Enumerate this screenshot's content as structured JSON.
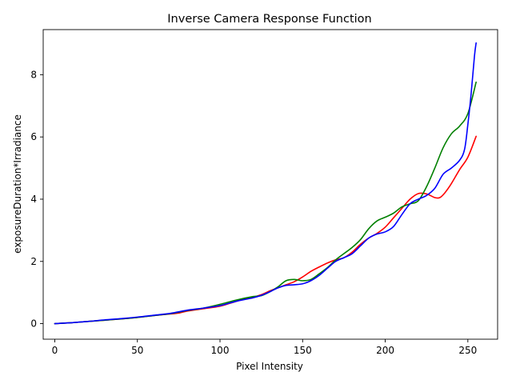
{
  "chart_data": {
    "type": "line",
    "title": "Inverse Camera Response Function",
    "xlabel": "Pixel Intensity",
    "ylabel": "exposureDuration*Irradiance",
    "xlim": [
      -7,
      268
    ],
    "ylim": [
      -0.5,
      9.45
    ],
    "xticks": [
      0,
      50,
      100,
      150,
      200,
      250
    ],
    "yticks": [
      0,
      2,
      4,
      6,
      8
    ],
    "grid": false,
    "legend": "none",
    "series": [
      {
        "color": "#ff0000",
        "x": [
          0,
          10,
          20,
          30,
          40,
          50,
          60,
          70,
          75,
          80,
          90,
          100,
          110,
          120,
          125,
          130,
          135,
          140,
          145,
          150,
          155,
          160,
          165,
          170,
          175,
          180,
          185,
          190,
          195,
          200,
          205,
          210,
          215,
          220,
          225,
          230,
          233,
          236,
          240,
          245,
          250,
          255
        ],
        "y": [
          0.0,
          0.03,
          0.07,
          0.11,
          0.15,
          0.2,
          0.26,
          0.31,
          0.34,
          0.4,
          0.48,
          0.56,
          0.72,
          0.85,
          0.93,
          1.05,
          1.15,
          1.25,
          1.35,
          1.5,
          1.68,
          1.82,
          1.95,
          2.05,
          2.12,
          2.3,
          2.55,
          2.75,
          2.9,
          3.1,
          3.4,
          3.7,
          4.0,
          4.18,
          4.17,
          4.05,
          4.05,
          4.2,
          4.5,
          4.95,
          5.35,
          6.02
        ]
      },
      {
        "color": "#008000",
        "x": [
          0,
          10,
          20,
          30,
          40,
          50,
          60,
          70,
          80,
          90,
          100,
          110,
          120,
          125,
          130,
          135,
          140,
          145,
          150,
          155,
          160,
          165,
          170,
          175,
          180,
          185,
          190,
          195,
          200,
          205,
          210,
          215,
          220,
          225,
          230,
          235,
          240,
          245,
          250,
          255
        ],
        "y": [
          0.0,
          0.03,
          0.07,
          0.11,
          0.15,
          0.2,
          0.26,
          0.32,
          0.42,
          0.5,
          0.62,
          0.76,
          0.87,
          0.9,
          1.02,
          1.18,
          1.38,
          1.42,
          1.38,
          1.42,
          1.6,
          1.8,
          2.05,
          2.25,
          2.45,
          2.7,
          3.05,
          3.3,
          3.42,
          3.55,
          3.75,
          3.85,
          3.95,
          4.4,
          5.0,
          5.65,
          6.1,
          6.35,
          6.75,
          7.76
        ]
      },
      {
        "color": "#0000ff",
        "x": [
          0,
          10,
          20,
          30,
          40,
          50,
          60,
          70,
          80,
          90,
          100,
          110,
          120,
          125,
          130,
          135,
          140,
          145,
          150,
          155,
          160,
          165,
          170,
          175,
          180,
          185,
          190,
          195,
          200,
          205,
          210,
          215,
          220,
          225,
          230,
          235,
          240,
          245,
          248,
          250,
          252,
          254,
          255
        ],
        "y": [
          0.0,
          0.03,
          0.07,
          0.12,
          0.16,
          0.21,
          0.27,
          0.33,
          0.43,
          0.5,
          0.58,
          0.72,
          0.83,
          0.91,
          1.02,
          1.15,
          1.23,
          1.25,
          1.28,
          1.38,
          1.55,
          1.78,
          2.0,
          2.12,
          2.25,
          2.5,
          2.75,
          2.88,
          2.95,
          3.12,
          3.5,
          3.85,
          4.0,
          4.12,
          4.35,
          4.8,
          5.0,
          5.25,
          5.6,
          6.4,
          7.4,
          8.6,
          9.02
        ]
      }
    ]
  }
}
